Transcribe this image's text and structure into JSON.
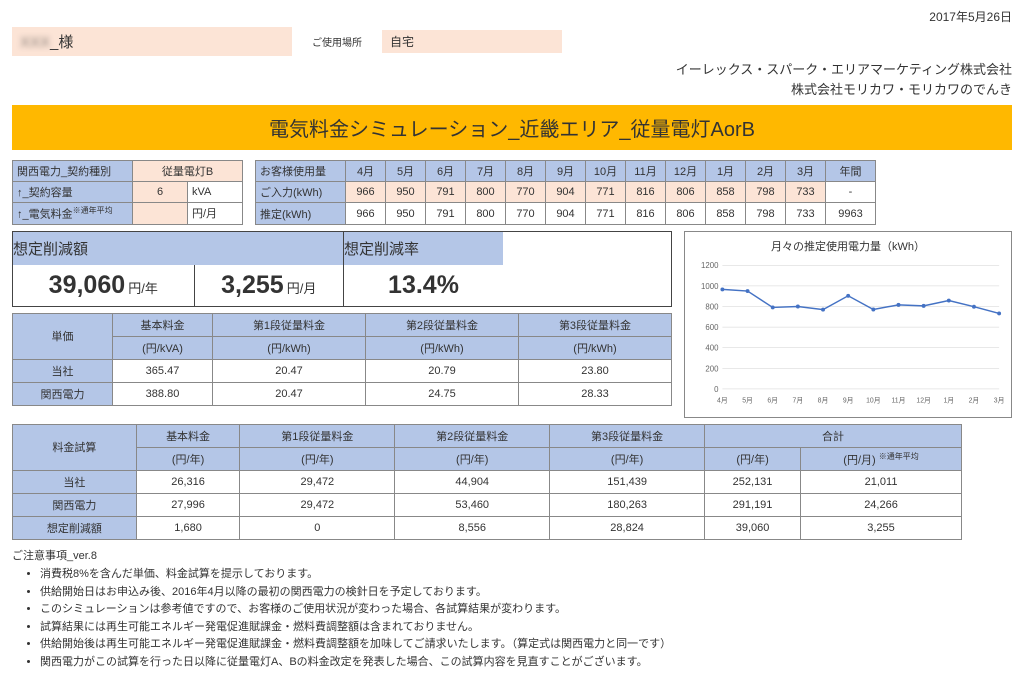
{
  "date": "2017年5月26日",
  "customer_name_suffix": "_様",
  "location_label": "ご使用場所",
  "location": "自宅",
  "company1": "イーレックス・スパーク・エリアマーケティング株式会社",
  "company2": "株式会社モリカワ・モリカワのでんき",
  "title": "電気料金シミュレーション_近畿エリア_従量電灯AorB",
  "contract": {
    "header": "関西電力_契約種別",
    "plan": "従量電灯B",
    "rows": [
      {
        "label": "↑_契約容量",
        "val": "6",
        "unit": "kVA"
      },
      {
        "label": "↑_電気料金",
        "sup": "※通年平均",
        "val": "",
        "unit": "円/月"
      }
    ]
  },
  "usage": {
    "header": "お客様使用量",
    "months": [
      "4月",
      "5月",
      "6月",
      "7月",
      "8月",
      "9月",
      "10月",
      "11月",
      "12月",
      "1月",
      "2月",
      "3月",
      "年間"
    ],
    "input_label": "ご入力(kWh)",
    "input": [
      "966",
      "950",
      "791",
      "800",
      "770",
      "904",
      "771",
      "816",
      "806",
      "858",
      "798",
      "733",
      "-"
    ],
    "est_label": "推定(kWh)",
    "est": [
      "966",
      "950",
      "791",
      "800",
      "770",
      "904",
      "771",
      "816",
      "806",
      "858",
      "798",
      "733",
      "9963"
    ]
  },
  "summary": {
    "reduction_amount_label": "想定削減額",
    "reduction_year": "39,060",
    "reduction_year_unit": "円/年",
    "reduction_month": "3,255",
    "reduction_month_unit": "円/月",
    "reduction_rate_label": "想定削減率",
    "reduction_rate": "13.4%"
  },
  "chart": {
    "title": "月々の推定使用電力量（kWh）",
    "x_labels": [
      "4月",
      "5月",
      "6月",
      "7月",
      "8月",
      "9月",
      "10月",
      "11月",
      "12月",
      "1月",
      "2月",
      "3月"
    ],
    "y_ticks": [
      0,
      200,
      400,
      600,
      800,
      1000,
      1200
    ],
    "values": [
      966,
      950,
      791,
      800,
      770,
      904,
      771,
      816,
      806,
      858,
      798,
      733
    ],
    "line_color": "#4472c4",
    "grid_color": "#d0d0d0",
    "ylim": [
      0,
      1200
    ]
  },
  "price": {
    "cols": [
      "単価",
      "基本料金",
      "第1段従量料金",
      "第2段従量料金",
      "第3段従量料金"
    ],
    "units": [
      "",
      "(円/kVA)",
      "(円/kWh)",
      "(円/kWh)",
      "(円/kWh)"
    ],
    "rows": [
      {
        "label": "当社",
        "vals": [
          "365.47",
          "20.47",
          "20.79",
          "23.80"
        ]
      },
      {
        "label": "関西電力",
        "vals": [
          "388.80",
          "20.47",
          "24.75",
          "28.33"
        ]
      }
    ]
  },
  "calc": {
    "cols": [
      "料金試算",
      "基本料金",
      "第1段従量料金",
      "第2段従量料金",
      "第3段従量料金",
      "合計",
      ""
    ],
    "units": [
      "",
      "(円/年)",
      "(円/年)",
      "(円/年)",
      "(円/年)",
      "(円/年)",
      "(円/月)"
    ],
    "unit_note": "※通年平均",
    "rows": [
      {
        "label": "当社",
        "vals": [
          "26,316",
          "29,472",
          "44,904",
          "151,439",
          "252,131",
          "21,011"
        ]
      },
      {
        "label": "関西電力",
        "vals": [
          "27,996",
          "29,472",
          "53,460",
          "180,263",
          "291,191",
          "24,266"
        ]
      },
      {
        "label": "想定削減額",
        "vals": [
          "1,680",
          "0",
          "8,556",
          "28,824",
          "39,060",
          "3,255"
        ]
      }
    ]
  },
  "notes": {
    "header": "ご注意事項_ver.8",
    "items": [
      "消費税8%を含んだ単価、料金試算を提示しております。",
      "供給開始日はお申込み後、2016年4月以降の最初の関西電力の検針日を予定しております。",
      "このシミュレーションは参考値ですので、お客様のご使用状況が変わった場合、各試算結果が変わります。",
      "試算結果には再生可能エネルギー発電促進賦課金・燃料費調整額は含まれておりません。",
      "供給開始後は再生可能エネルギー発電促進賦課金・燃料費調整額を加味してご請求いたします。（算定式は関西電力と同一です）",
      "関西電力がこの試算を行った日以降に従量電灯A、Bの料金改定を発表した場合、この試算内容を見直すことがございます。"
    ]
  }
}
